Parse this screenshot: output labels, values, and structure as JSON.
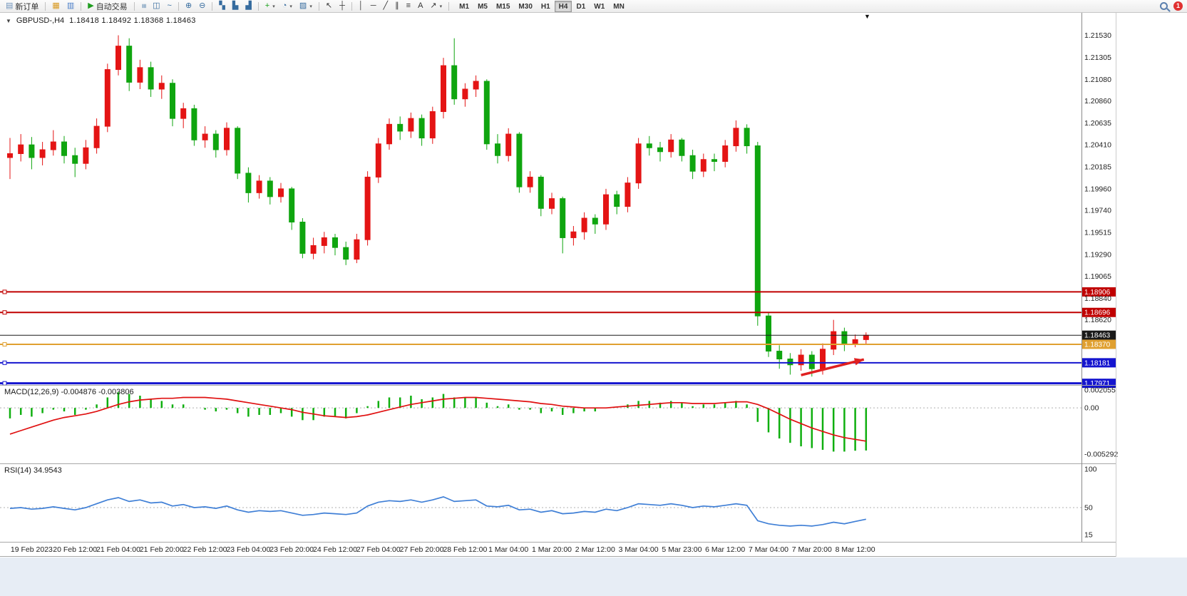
{
  "toolbar": {
    "groups": [
      {
        "items": [
          {
            "name": "new-order-button",
            "glyph": "▤",
            "color": "#6f93bb",
            "label": "新订单"
          }
        ]
      },
      {
        "items": [
          {
            "name": "charts-profile-button",
            "glyph": "▦",
            "color": "#d8981f"
          },
          {
            "name": "data-window-button",
            "glyph": "▥",
            "color": "#4a7ec8"
          }
        ]
      },
      {
        "items": [
          {
            "name": "autotrading-button",
            "glyph": "▶",
            "color": "#1f9d1f",
            "label": "自动交易"
          }
        ]
      },
      {
        "items": [
          {
            "name": "bar-chart-button",
            "glyph": "≡",
            "color": "#356b9e",
            "rot": true
          },
          {
            "name": "candlestick-chart-button",
            "glyph": "◫",
            "color": "#356b9e"
          },
          {
            "name": "line-chart-button",
            "glyph": "~",
            "color": "#356b9e"
          }
        ]
      },
      {
        "items": [
          {
            "name": "zoom-in-button",
            "glyph": "⊕",
            "color": "#356b9e"
          },
          {
            "name": "zoom-out-button",
            "glyph": "⊖",
            "color": "#356b9e"
          }
        ]
      },
      {
        "items": [
          {
            "name": "tile-windows-button",
            "glyph": "▚",
            "color": "#356b9e"
          },
          {
            "name": "cascade-windows-button",
            "glyph": "▙",
            "color": "#356b9e"
          },
          {
            "name": "arrange-windows-button",
            "glyph": "▟",
            "color": "#356b9e"
          }
        ]
      },
      {
        "items": [
          {
            "name": "indicators-button",
            "glyph": "+",
            "color": "#18a018",
            "caret": true
          },
          {
            "name": "period-button",
            "glyph": "◔",
            "color": "#356b9e",
            "caret": true
          },
          {
            "name": "templates-button",
            "glyph": "▨",
            "color": "#356b9e",
            "caret": true
          }
        ]
      },
      {
        "items": [
          {
            "name": "cursor-button",
            "glyph": "↖",
            "color": "#333333"
          },
          {
            "name": "crosshair-button",
            "glyph": "┼",
            "color": "#333333"
          }
        ]
      },
      {
        "items": [
          {
            "name": "vertical-line-button",
            "glyph": "│",
            "color": "#333333"
          },
          {
            "name": "horizontal-line-button",
            "glyph": "─",
            "color": "#333333"
          },
          {
            "name": "trendline-button",
            "glyph": "╱",
            "color": "#333333"
          },
          {
            "name": "channel-button",
            "glyph": "∥",
            "color": "#333333"
          },
          {
            "name": "fibonacci-button",
            "glyph": "≡",
            "color": "#333333"
          },
          {
            "name": "text-button",
            "glyph": "A",
            "color": "#333333"
          },
          {
            "name": "arrow-tool-button",
            "glyph": "↗",
            "color": "#333333",
            "caret": true
          }
        ]
      }
    ],
    "timeframes": [
      "M1",
      "M5",
      "M15",
      "M30",
      "H1",
      "H4",
      "D1",
      "W1",
      "MN"
    ],
    "active_timeframe": "H4"
  },
  "notifications": {
    "count": "1"
  },
  "chart_header": {
    "collapse_glyph": "▼",
    "symbol": "GBPUSD-,H4",
    "ohlc": "1.18418 1.18492 1.18368 1.18463"
  },
  "shift_marker_glyph": "▼",
  "chart_data": [
    {
      "type": "candlestick",
      "symbol": "GBPUSD-",
      "timeframe": "H4",
      "bull_color": "#e41414",
      "bear_color": "#0fa50f",
      "ylim": [
        1.17954,
        1.2176
      ],
      "price_axis_labels": [
        "1.21530",
        "1.21305",
        "1.21080",
        "1.20860",
        "1.20635",
        "1.20410",
        "1.20185",
        "1.19960",
        "1.19740",
        "1.19515",
        "1.19290",
        "1.19065",
        "1.18840",
        "1.18620"
      ],
      "x_label_first_index": 2,
      "x_label_every": 4,
      "x_labels": [
        "19 Feb 2023",
        "20 Feb 12:00",
        "21 Feb 04:00",
        "21 Feb 20:00",
        "22 Feb 12:00",
        "23 Feb 04:00",
        "23 Feb 20:00",
        "24 Feb 12:00",
        "27 Feb 04:00",
        "27 Feb 20:00",
        "28 Feb 12:00",
        "1 Mar 04:00",
        "1 Mar 20:00",
        "2 Mar 12:00",
        "3 Mar 04:00",
        "5 Mar 23:00",
        "6 Mar 12:00",
        "7 Mar 04:00",
        "7 Mar 20:00",
        "8 Mar 12:00"
      ],
      "hlines": [
        {
          "label": "1.18906",
          "price": 1.18906,
          "color": "#c00000",
          "width": 2,
          "handle": true
        },
        {
          "label": "1.18696",
          "price": 1.18696,
          "color": "#c00000",
          "width": 2,
          "handle": true
        },
        {
          "label": "1.18463",
          "price": 1.18463,
          "color": "#1a1a1a",
          "width": 1,
          "handle": false
        },
        {
          "label": "1.18370",
          "price": 1.1837,
          "color": "#e0a030",
          "width": 2,
          "handle": true
        },
        {
          "label": "1.18181",
          "price": 1.18181,
          "color": "#1515cf",
          "width": 2,
          "handle": true
        },
        {
          "label": "1.17971",
          "price": 1.17971,
          "color": "#1515cf",
          "width": 3,
          "handle": true
        }
      ],
      "annotation_arrow": {
        "color": "#e02020",
        "from": {
          "index": 73,
          "price": 1.18055
        },
        "to": {
          "index": 78.8,
          "price": 1.18215
        }
      },
      "candles": [
        [
          1.2028,
          1.2048,
          1.2006,
          1.2032
        ],
        [
          1.2032,
          1.2052,
          1.2024,
          1.2041
        ],
        [
          1.2041,
          1.2049,
          1.2016,
          1.2028
        ],
        [
          1.2028,
          1.2044,
          1.202,
          1.2036
        ],
        [
          1.2036,
          1.2056,
          1.203,
          1.2044
        ],
        [
          1.2044,
          1.205,
          1.2022,
          1.203
        ],
        [
          1.203,
          1.2038,
          1.2008,
          1.2022
        ],
        [
          1.2022,
          1.2046,
          1.2016,
          1.2038
        ],
        [
          1.2038,
          1.2068,
          1.2032,
          1.206
        ],
        [
          1.206,
          1.2124,
          1.2054,
          1.2118
        ],
        [
          1.2118,
          1.2153,
          1.2112,
          1.2142
        ],
        [
          1.2142,
          1.215,
          1.2096,
          1.2105
        ],
        [
          1.2105,
          1.2128,
          1.2098,
          1.212
        ],
        [
          1.212,
          1.2126,
          1.209,
          1.2098
        ],
        [
          1.2098,
          1.2112,
          1.2088,
          1.2104
        ],
        [
          1.2104,
          1.2108,
          1.206,
          1.2068
        ],
        [
          1.2068,
          1.2084,
          1.2058,
          1.2078
        ],
        [
          1.2078,
          1.2082,
          1.204,
          1.2046
        ],
        [
          1.2046,
          1.206,
          1.2038,
          1.2052
        ],
        [
          1.2052,
          1.2056,
          1.2028,
          1.2036
        ],
        [
          1.2036,
          1.2064,
          1.203,
          1.2058
        ],
        [
          1.2058,
          1.206,
          1.2006,
          1.2012
        ],
        [
          1.2012,
          1.2018,
          1.1982,
          1.1992
        ],
        [
          1.1992,
          1.201,
          1.1986,
          1.2004
        ],
        [
          1.2004,
          1.2008,
          1.198,
          1.1988
        ],
        [
          1.1988,
          1.2002,
          1.1982,
          1.1996
        ],
        [
          1.1996,
          1.1998,
          1.1954,
          1.1962
        ],
        [
          1.1962,
          1.1966,
          1.1925,
          1.193
        ],
        [
          1.193,
          1.1946,
          1.1924,
          1.1938
        ],
        [
          1.1938,
          1.1952,
          1.193,
          1.1946
        ],
        [
          1.1946,
          1.195,
          1.1928,
          1.1936
        ],
        [
          1.1936,
          1.1942,
          1.1918,
          1.1924
        ],
        [
          1.1924,
          1.195,
          1.192,
          1.1944
        ],
        [
          1.1944,
          1.2014,
          1.1938,
          1.2008
        ],
        [
          1.2008,
          1.2048,
          1.2002,
          1.2042
        ],
        [
          1.2042,
          1.2068,
          1.2036,
          1.2062
        ],
        [
          1.2062,
          1.207,
          1.2046,
          1.2055
        ],
        [
          1.2055,
          1.2074,
          1.2048,
          1.2068
        ],
        [
          1.2068,
          1.2072,
          1.204,
          1.2048
        ],
        [
          1.2048,
          1.208,
          1.2042,
          1.2075
        ],
        [
          1.2075,
          1.213,
          1.2068,
          1.2122
        ],
        [
          1.2122,
          1.215,
          1.2082,
          1.2088
        ],
        [
          1.2088,
          1.2104,
          1.208,
          1.2098
        ],
        [
          1.2098,
          1.2112,
          1.209,
          1.2106
        ],
        [
          1.2106,
          1.2108,
          1.2036,
          1.2042
        ],
        [
          1.2042,
          1.2052,
          1.2022,
          1.203
        ],
        [
          1.203,
          1.2058,
          1.2024,
          1.2052
        ],
        [
          1.2052,
          1.2054,
          1.1992,
          1.1998
        ],
        [
          1.1998,
          1.2014,
          1.1992,
          1.2008
        ],
        [
          1.2008,
          1.201,
          1.1968,
          1.1976
        ],
        [
          1.1976,
          1.1992,
          1.197,
          1.1986
        ],
        [
          1.1986,
          1.1988,
          1.193,
          1.1946
        ],
        [
          1.1946,
          1.1958,
          1.1938,
          1.1952
        ],
        [
          1.1952,
          1.1972,
          1.1944,
          1.1966
        ],
        [
          1.1966,
          1.197,
          1.195,
          1.196
        ],
        [
          1.196,
          1.1996,
          1.1954,
          1.199
        ],
        [
          1.199,
          1.1994,
          1.197,
          1.1978
        ],
        [
          1.1978,
          1.2008,
          1.1972,
          1.2002
        ],
        [
          1.2002,
          1.2048,
          1.1996,
          1.2042
        ],
        [
          1.2042,
          1.205,
          1.203,
          1.2038
        ],
        [
          1.2038,
          1.2044,
          1.2024,
          1.2034
        ],
        [
          1.2034,
          1.2052,
          1.2028,
          1.2046
        ],
        [
          1.2046,
          1.2048,
          1.2024,
          1.203
        ],
        [
          1.203,
          1.2036,
          1.2006,
          1.2014
        ],
        [
          1.2014,
          1.2032,
          1.2008,
          1.2026
        ],
        [
          1.2026,
          1.2032,
          1.2014,
          1.2024
        ],
        [
          1.2024,
          1.2046,
          1.2018,
          1.204
        ],
        [
          1.204,
          1.2066,
          1.2034,
          1.2058
        ],
        [
          1.2058,
          1.2062,
          1.2032,
          1.204
        ],
        [
          1.204,
          1.2044,
          1.1856,
          1.1866
        ],
        [
          1.1866,
          1.187,
          1.1824,
          1.183
        ],
        [
          1.183,
          1.1836,
          1.1812,
          1.1822
        ],
        [
          1.1822,
          1.1828,
          1.1806,
          1.1816
        ],
        [
          1.1816,
          1.1832,
          1.181,
          1.1826
        ],
        [
          1.1826,
          1.183,
          1.1804,
          1.1812
        ],
        [
          1.1812,
          1.1838,
          1.1806,
          1.1832
        ],
        [
          1.1832,
          1.1862,
          1.1826,
          1.185
        ],
        [
          1.185,
          1.1854,
          1.183,
          1.1838
        ],
        [
          1.1838,
          1.1847,
          1.1834,
          1.18418
        ],
        [
          1.18418,
          1.18492,
          1.18368,
          1.18463
        ]
      ]
    },
    {
      "type": "macd",
      "label": "MACD(12,26,9)",
      "values_label": "-0.004876 -0.003806",
      "histogram_color": "#0faf0f",
      "signal_color": "#e01010",
      "y_top_value": 0.002055,
      "y_bottom_value": -0.005292,
      "axis_labels": [
        "0.002055",
        "0.00",
        "-0.005292"
      ],
      "histogram": [
        -0.0012,
        -0.0008,
        -0.001,
        -0.0006,
        -0.0002,
        -0.0004,
        -0.0008,
        -0.0002,
        0.0004,
        0.0012,
        0.0018,
        0.0016,
        0.0014,
        0.001,
        0.0008,
        0.0004,
        0.0004,
        0.0,
        -0.0002,
        -0.0004,
        -0.0002,
        -0.0006,
        -0.001,
        -0.0008,
        -0.0008,
        -0.0006,
        -0.001,
        -0.0014,
        -0.0014,
        -0.001,
        -0.001,
        -0.0012,
        -0.0006,
        0.0002,
        0.0008,
        0.0012,
        0.0012,
        0.0014,
        0.001,
        0.0012,
        0.0016,
        0.0012,
        0.0012,
        0.0012,
        0.0006,
        0.0002,
        0.0004,
        -0.0002,
        -0.0002,
        -0.0006,
        -0.0004,
        -0.0008,
        -0.0006,
        -0.0004,
        -0.0004,
        0.0,
        0.0,
        0.0004,
        0.0008,
        0.0008,
        0.0006,
        0.0008,
        0.0006,
        0.0002,
        0.0004,
        0.0004,
        0.0006,
        0.0008,
        0.0004,
        -0.0016,
        -0.0028,
        -0.0035,
        -0.004,
        -0.0044,
        -0.0046,
        -0.0048,
        -0.005,
        -0.005,
        -0.0049,
        -0.004876
      ],
      "signal": [
        -0.003,
        -0.0026,
        -0.0022,
        -0.0018,
        -0.0014,
        -0.0011,
        -0.0009,
        -0.0007,
        -0.0004,
        0.0,
        0.0004,
        0.0007,
        0.0009,
        0.001,
        0.0011,
        0.0011,
        0.0012,
        0.0012,
        0.0012,
        0.0011,
        0.001,
        0.0008,
        0.0006,
        0.0004,
        0.0002,
        0.0,
        -0.0002,
        -0.0005,
        -0.0007,
        -0.0009,
        -0.001,
        -0.0011,
        -0.001,
        -0.0008,
        -0.0005,
        -0.0002,
        0.0001,
        0.0004,
        0.0006,
        0.0008,
        0.001,
        0.0011,
        0.0012,
        0.0012,
        0.0011,
        0.001,
        0.0009,
        0.0008,
        0.0007,
        0.0005,
        0.0004,
        0.0002,
        0.0001,
        0.0,
        0.0,
        0.0,
        0.0001,
        0.0002,
        0.0003,
        0.0004,
        0.0005,
        0.0006,
        0.0006,
        0.0005,
        0.0005,
        0.0005,
        0.0006,
        0.0007,
        0.0007,
        0.0004,
        -0.0001,
        -0.0007,
        -0.0013,
        -0.0018,
        -0.0023,
        -0.0027,
        -0.0031,
        -0.0034,
        -0.0036,
        -0.003806
      ]
    },
    {
      "type": "line",
      "label": "RSI(14)",
      "value_label": "34.9543",
      "color": "#3f7fd6",
      "levels": [
        50
      ],
      "axis_labels": [
        "100",
        "50",
        "15"
      ],
      "values": [
        49,
        50,
        48,
        49,
        51,
        49,
        47,
        50,
        55,
        60,
        63,
        58,
        60,
        56,
        57,
        52,
        54,
        50,
        51,
        49,
        52,
        47,
        44,
        46,
        45,
        46,
        43,
        40,
        41,
        43,
        42,
        41,
        43,
        52,
        57,
        59,
        58,
        60,
        57,
        60,
        64,
        58,
        59,
        60,
        52,
        51,
        53,
        47,
        48,
        44,
        46,
        42,
        43,
        45,
        44,
        48,
        46,
        50,
        55,
        54,
        53,
        55,
        53,
        50,
        52,
        51,
        53,
        55,
        53,
        33,
        29,
        27,
        26,
        27,
        26,
        28,
        31,
        29,
        32,
        34.95
      ]
    }
  ]
}
